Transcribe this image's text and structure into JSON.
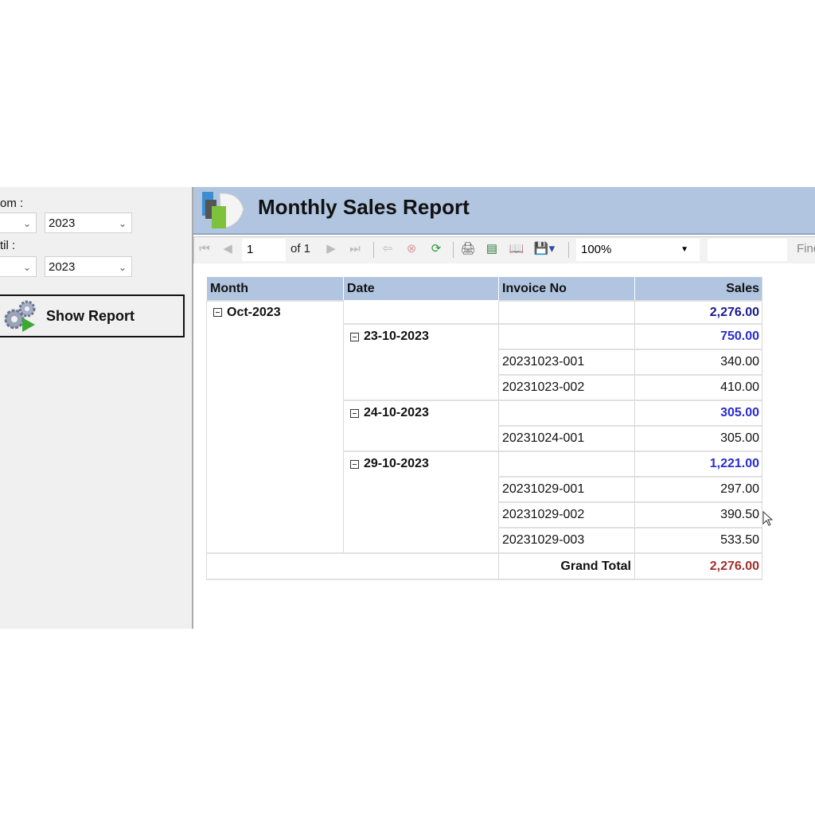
{
  "filters": {
    "from_label": "om :",
    "from_year": "2023",
    "until_label": "til :",
    "until_year": "2023",
    "show_report_label": "Show Report"
  },
  "report": {
    "title": "Monthly Sales Report",
    "toolbar": {
      "page": "1",
      "of_label": "of 1",
      "zoom": "100%",
      "find_label": "Find"
    }
  },
  "table": {
    "headers": [
      "Month",
      "Date",
      "Invoice No",
      "Sales"
    ],
    "rows": [
      {
        "month": "Oct-2023",
        "date": "",
        "invoice": "",
        "sales": "2,276.00",
        "level": "month"
      },
      {
        "month": "",
        "date": "23-10-2023",
        "invoice": "",
        "sales": "750.00",
        "level": "date"
      },
      {
        "month": "",
        "date": "",
        "invoice": "20231023-001",
        "sales": "340.00",
        "level": "detail"
      },
      {
        "month": "",
        "date": "",
        "invoice": "20231023-002",
        "sales": "410.00",
        "level": "detail"
      },
      {
        "month": "",
        "date": "24-10-2023",
        "invoice": "",
        "sales": "305.00",
        "level": "date"
      },
      {
        "month": "",
        "date": "",
        "invoice": "20231024-001",
        "sales": "305.00",
        "level": "detail"
      },
      {
        "month": "",
        "date": "29-10-2023",
        "invoice": "",
        "sales": "1,221.00",
        "level": "date"
      },
      {
        "month": "",
        "date": "",
        "invoice": "20231029-001",
        "sales": "297.00",
        "level": "detail"
      },
      {
        "month": "",
        "date": "",
        "invoice": "20231029-002",
        "sales": "390.50",
        "level": "detail"
      },
      {
        "month": "",
        "date": "",
        "invoice": "20231029-003",
        "sales": "533.50",
        "level": "detail"
      }
    ],
    "grand_total_label": "Grand Total",
    "grand_total": "2,276.00"
  },
  "colors": {
    "month_total": "#1a1a8c",
    "date_total": "#2b2bd0",
    "grand_total": "#a0302a",
    "header_bg": "#b1c5e0"
  }
}
